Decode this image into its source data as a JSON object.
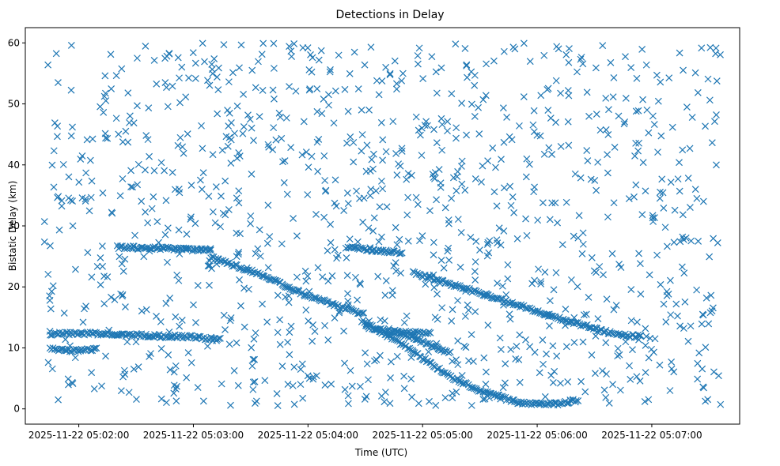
{
  "chart_data": {
    "type": "scatter",
    "title": "Detections in Delay",
    "xlabel": "Time (UTC)",
    "ylabel": "Bistatic Delay (km)",
    "marker": "x",
    "marker_color": "#1f77b4",
    "xlim_seconds": [
      -28,
      346
    ],
    "ylim": [
      -2.5,
      62.5
    ],
    "x_ticks": [
      {
        "t": 0,
        "label": "2025-11-22 05:02:00"
      },
      {
        "t": 60,
        "label": "2025-11-22 05:03:00"
      },
      {
        "t": 120,
        "label": "2025-11-22 05:04:00"
      },
      {
        "t": 180,
        "label": "2025-11-22 05:05:00"
      },
      {
        "t": 240,
        "label": "2025-11-22 05:06:00"
      },
      {
        "t": 300,
        "label": "2025-11-22 05:07:00"
      }
    ],
    "y_ticks": [
      0,
      10,
      20,
      30,
      40,
      50,
      60
    ],
    "x_reference": "2025-11-22 05:02:00",
    "tracks": [
      {
        "name": "track-1",
        "points": [
          [
            20,
            26.5
          ],
          [
            45,
            26.3
          ],
          [
            70,
            26.0
          ]
        ]
      },
      {
        "name": "track-2",
        "points": [
          [
            70,
            24.8
          ],
          [
            95,
            22.0
          ],
          [
            120,
            18.5
          ],
          [
            150,
            15.5
          ]
        ]
      },
      {
        "name": "track-3",
        "points": [
          [
            -15,
            12.3
          ],
          [
            0,
            12.4
          ],
          [
            30,
            12.1
          ],
          [
            60,
            11.8
          ],
          [
            75,
            11.3
          ]
        ]
      },
      {
        "name": "track-4",
        "points": [
          [
            140,
            26.5
          ],
          [
            170,
            25.6
          ]
        ]
      },
      {
        "name": "track-5",
        "points": [
          [
            175,
            22.3
          ],
          [
            210,
            19.0
          ],
          [
            250,
            15.0
          ],
          [
            280,
            12.3
          ],
          [
            295,
            11.8
          ]
        ]
      },
      {
        "name": "track-6",
        "points": [
          [
            148,
            14.5
          ],
          [
            170,
            10.5
          ],
          [
            195,
            5.2
          ],
          [
            210,
            3.0
          ],
          [
            230,
            1.0
          ],
          [
            250,
            0.8
          ],
          [
            262,
            1.5
          ]
        ]
      },
      {
        "name": "track-7",
        "points": [
          [
            150,
            13.5
          ],
          [
            165,
            12.5
          ],
          [
            185,
            12.5
          ]
        ]
      },
      {
        "name": "track-8",
        "points": [
          [
            165,
            12.8
          ],
          [
            180,
            11.0
          ],
          [
            195,
            9.0
          ]
        ]
      },
      {
        "name": "track-9",
        "points": [
          [
            -15,
            9.8
          ],
          [
            0,
            9.5
          ],
          [
            10,
            9.8
          ]
        ]
      }
    ],
    "clutter": {
      "description": "random false-alarm detections spread uniformly over the plot",
      "count": 1100,
      "t_range": [
        -28,
        346
      ],
      "y_range": [
        0.5,
        60
      ]
    }
  }
}
